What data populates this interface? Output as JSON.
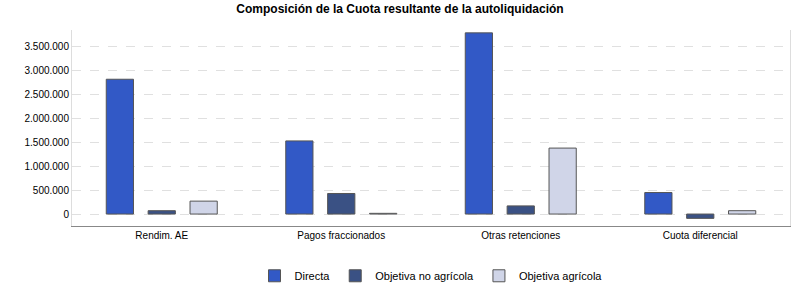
{
  "chart_data": {
    "type": "bar",
    "title": "Composición de la Cuota resultante de la autoliquidación",
    "categories": [
      "Rendim. AE",
      "Pagos fraccionados",
      "Otras retenciones",
      "Cuota diferencial"
    ],
    "series": [
      {
        "name": "Directa",
        "color": "#3259c6",
        "values": [
          2820000,
          1530000,
          3790000,
          450000
        ]
      },
      {
        "name": "Objetiva no agrícola",
        "color": "#3a5184",
        "values": [
          70000,
          430000,
          170000,
          -90000
        ]
      },
      {
        "name": "Objetiva agrícola",
        "color": "#d0d5e8",
        "values": [
          270000,
          15000,
          1380000,
          70000
        ]
      }
    ],
    "ylim": [
      -250000,
      3850000
    ],
    "yticks": [
      0,
      {
        "value": 500000,
        "label": "500.000"
      },
      {
        "value": 1000000,
        "label": "1.000.000"
      },
      {
        "value": 1500000,
        "label": "1.500.000"
      },
      {
        "value": 2000000,
        "label": "2.000.000"
      },
      {
        "value": 2500000,
        "label": "2.500.000"
      },
      {
        "value": 3000000,
        "label": "3.000.000"
      },
      {
        "value": 3500000,
        "label": "3.500.000"
      }
    ],
    "grid": true,
    "legend": "bottom"
  }
}
